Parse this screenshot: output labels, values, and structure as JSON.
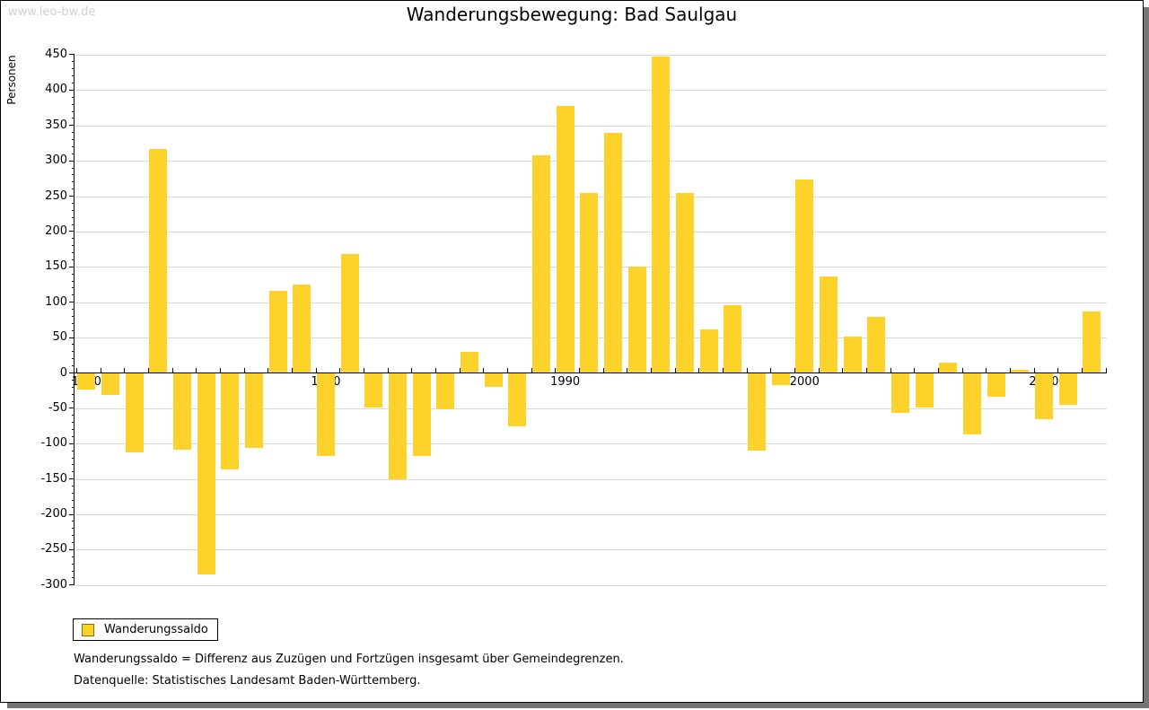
{
  "watermark": "www.leo-bw.de",
  "title": "Wanderungsbewegung: Bad Saulgau",
  "y_axis_title": "Personen",
  "legend": {
    "label": "Wanderungssaldo"
  },
  "footnotes": [
    "Wanderungssaldo = Differenz aus Zuzügen und Fortzügen insgesamt über Gemeindegrenzen.",
    "Datenquelle: Statistisches Landesamt Baden-Württemberg."
  ],
  "colors": {
    "bar": "#FDD32B",
    "grid": "#D9D9D9",
    "axis": "#000000",
    "shadow": "#757575",
    "watermark": "#D0D0D0"
  },
  "chart_data": {
    "type": "bar",
    "title": "Wanderungsbewegung: Bad Saulgau",
    "xlabel": "",
    "ylabel": "Personen",
    "series_name": "Wanderungssaldo",
    "x": [
      1970,
      1971,
      1972,
      1973,
      1974,
      1975,
      1976,
      1977,
      1978,
      1979,
      1980,
      1981,
      1982,
      1983,
      1984,
      1985,
      1986,
      1987,
      1988,
      1989,
      1990,
      1991,
      1992,
      1993,
      1994,
      1995,
      1996,
      1997,
      1998,
      1999,
      2000,
      2001,
      2002,
      2003,
      2004,
      2005,
      2006,
      2007,
      2008,
      2009,
      2010,
      2011,
      2012
    ],
    "values": [
      -24,
      -31,
      -112,
      317,
      -108,
      -285,
      -136,
      -106,
      116,
      125,
      -117,
      168,
      -49,
      -150,
      -118,
      -51,
      30,
      -20,
      -76,
      308,
      378,
      254,
      340,
      150,
      448,
      254,
      62,
      96,
      -110,
      -17,
      274,
      137,
      51,
      79,
      -56,
      -49,
      15,
      -87,
      -34,
      4,
      -66,
      -45,
      87
    ],
    "ylim": [
      -300,
      450
    ],
    "y_ticks": [
      450,
      400,
      350,
      300,
      250,
      200,
      150,
      100,
      50,
      0,
      -50,
      -100,
      -150,
      -200,
      -250,
      -300
    ],
    "y_minor_tick_step": 10,
    "x_labeled_ticks": [
      1970,
      1980,
      1990,
      2000,
      2010
    ],
    "grid": true,
    "legend_position": "bottom-left"
  }
}
